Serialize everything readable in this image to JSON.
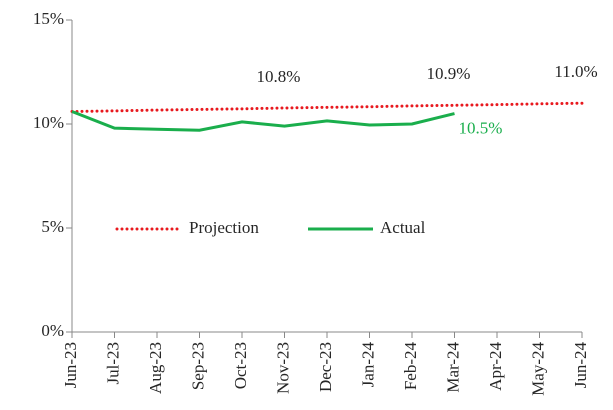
{
  "chart_data": {
    "type": "line",
    "categories": [
      "Jun-23",
      "Jul-23",
      "Aug-23",
      "Sep-23",
      "Oct-23",
      "Nov-23",
      "Dec-23",
      "Jan-24",
      "Feb-24",
      "Mar-24",
      "Apr-24",
      "May-24",
      "Jun-24"
    ],
    "series": [
      {
        "name": "Projection",
        "color": "#e8191e",
        "dash": "dotted",
        "values": [
          10.6,
          10.63,
          10.67,
          10.7,
          10.73,
          10.77,
          10.8,
          10.83,
          10.87,
          10.9,
          10.93,
          10.97,
          11.0
        ],
        "value_labels": [
          null,
          null,
          null,
          null,
          null,
          "10.8%",
          null,
          null,
          null,
          "10.9%",
          null,
          null,
          "11.0%"
        ]
      },
      {
        "name": "Actual",
        "color": "#1aae4c",
        "values": [
          10.6,
          9.8,
          9.75,
          9.7,
          10.1,
          9.9,
          10.15,
          9.95,
          10.0,
          10.5,
          null,
          null,
          null
        ],
        "value_labels": [
          null,
          null,
          null,
          null,
          null,
          null,
          null,
          null,
          null,
          "10.5%",
          null,
          null,
          null
        ]
      }
    ],
    "ylim": [
      0,
      15
    ],
    "yticks": [
      {
        "value": 0,
        "label": "0%"
      },
      {
        "value": 5,
        "label": "5%"
      },
      {
        "value": 10,
        "label": "10%"
      },
      {
        "value": 15,
        "label": "15%"
      }
    ]
  }
}
